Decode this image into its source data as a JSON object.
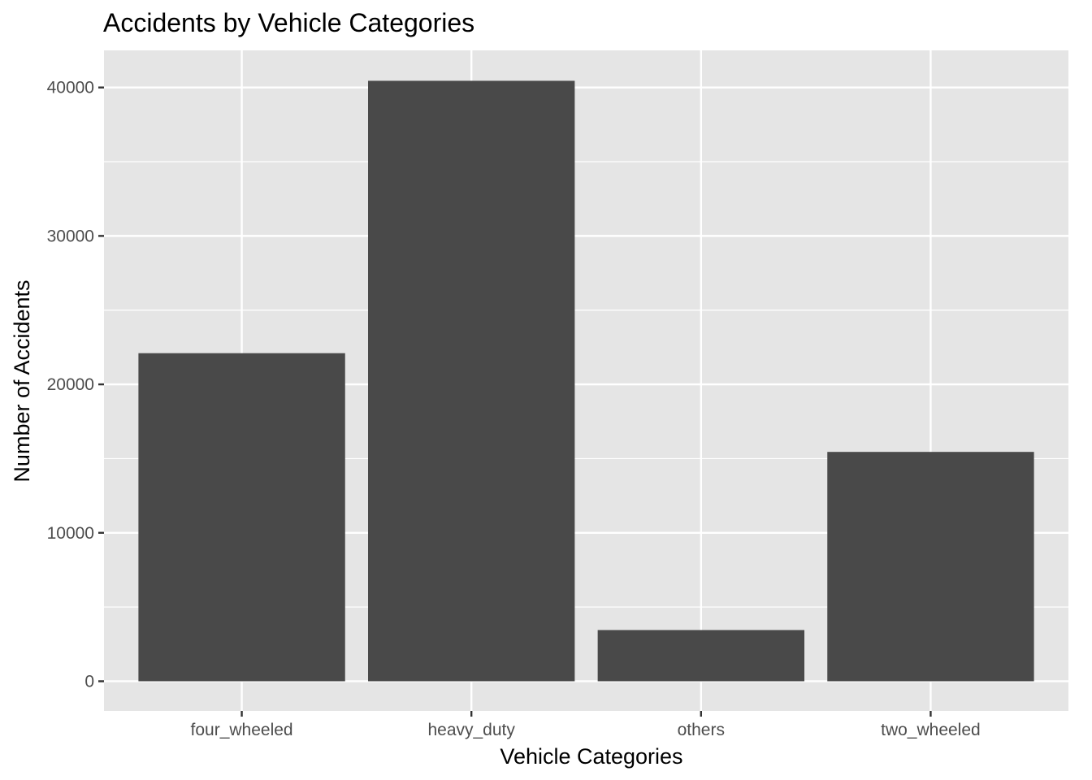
{
  "chart_data": {
    "type": "bar",
    "title": "Accidents by Vehicle Categories",
    "xlabel": "Vehicle Categories",
    "ylabel": "Number of Accidents",
    "categories": [
      "four_wheeled",
      "heavy_duty",
      "others",
      "two_wheeled"
    ],
    "values": [
      22100,
      40450,
      3450,
      15450
    ],
    "ylim": [
      -2000,
      42500
    ],
    "yticks": [
      0,
      10000,
      20000,
      30000,
      40000
    ],
    "ytick_labels": [
      "0",
      "10000",
      "20000",
      "30000",
      "40000"
    ],
    "grid": true,
    "legend": "none",
    "colors": {
      "panel": "#e5e5e5",
      "grid": "#ffffff",
      "bar": "#494949",
      "tick_text": "#4d4d4d",
      "tick_mark": "#333333"
    }
  }
}
